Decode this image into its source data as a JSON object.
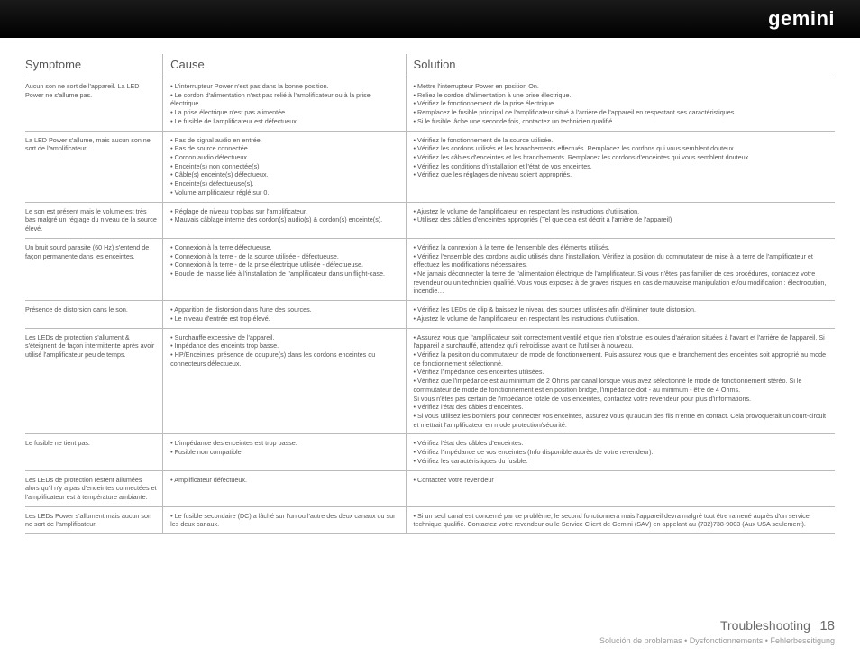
{
  "brand": "gemini",
  "headers": {
    "c1": "Symptome",
    "c2": "Cause",
    "c3": "Solution"
  },
  "footer": {
    "title": "Troubleshooting",
    "page": "18",
    "sub": "Solución de problemas • Dysfonctionnements  • Fehlerbeseitigung"
  },
  "rows": [
    {
      "symptom": "Aucun son ne sort de l'appareil. La LED Power ne s'allume pas.",
      "cause": "• L'interrupteur Power n'est pas dans la bonne position.\n• Le cordon d'alimentation n'est pas relié à l'amplificateur ou à la prise électrique.\n• La prise électrique n'est pas alimentée.\n• Le fusible de l'amplificateur est défectueux.",
      "solution": "• Mettre l'interrupteur Power en position On.\n• Reliez le cordon d'alimentation à une prise électrique.\n• Vérifiez le fonctionnement de la prise électrique.\n• Remplacez le fusible principal de l'amplificateur situé à l'arrière de l'appareil en respectant ses caractéristiques.\n• Si le fusible lâche une seconde fois, contactez un technicien qualifié."
    },
    {
      "symptom": "La LED Power s'allume, mais aucun son ne sort de l'amplificateur.",
      "cause": "• Pas de signal audio en entrée.\n• Pas de source connectée.\n• Cordon audio défectueux.\n• Enceinte(s) non connectée(s)\n• Câble(s) enceinte(s) défectueux.\n• Enceinte(s) défectueuse(s).\n• Volume amplificateur réglé sur 0.",
      "solution": "• Vérifiez le fonctionnement de la source utilisée.\n• Vérifiez les cordons utilisés et les branchements effectués. Remplacez les cordons qui vous semblent douteux.\n• Vérifiez les câbles d'enceintes et les branchements.  Remplacez les cordons d'enceintes qui vous semblent douteux.\n• Vérifiez les conditions d'installation et l'état de vos enceintes.\n• Vérifiez que les réglages de niveau soient appropriés."
    },
    {
      "symptom": "Le son est présent mais le volume est très bas malgré un réglage du niveau de la source élevé.",
      "cause": "• Réglage de niveau trop bas sur l'amplificateur.\n• Mauvais câblage interne des cordon(s) audio(s) & cordon(s) enceinte(s).",
      "solution": "• Ajustez le volume de l'amplificateur en respectant les instructions d'utilisation.\n• Utilisez des câbles d'enceintes appropriés (Tel que cela est décrit à l'arrière de l'appareil)"
    },
    {
      "symptom": "Un bruit sourd parasite (60 Hz) s'entend de façon permanente dans les enceintes.",
      "cause": "• Connexion à la terre défectueuse.\n• Connexion à la terre - de la source utilisée - défectueuse.\n• Connexion à la terre - de la prise électrique utilisée - défectueuse.\n• Boucle de masse liée à l'installation de l'amplificateur dans un flight-case.",
      "solution": "• Vérifiez la connexion à la terre de l'ensemble des éléments utilisés.\n• Vérifiez l'ensemble des cordons audio utilisés dans l'installation. Vérifiez la position du commutateur de mise à la terre de l'amplificateur et effectuez les modifications nécessaires.\n• Ne jamais déconnecter la terre de l'alimentation électrique de l'amplificateur. Si vous n'êtes pas familier de ces procédures, contactez votre revendeur ou un technicien qualifié. Vous vous exposez à de graves risques en cas de mauvaise manipulation et/ou modification : électrocution, incendie…"
    },
    {
      "symptom": "Présence de distorsion dans le son.",
      "cause": "• Apparition de distorsion dans l'une des sources.\n• Le niveau d'entrée est trop élevé.",
      "solution": "• Vérifiez les LEDs de clip & baissez le niveau des sources utilisées afin d'éliminer toute distorsion.\n• Ajustez le volume de l'amplificateur en respectant les instructions d'utilisation."
    },
    {
      "symptom": "Les LEDs de protection s'allument & s'éteignent de façon intermittente après avoir utilisé l'amplificateur peu de temps.",
      "cause": "• Surchauffe excessive de l'appareil.\n• Impédance des enceints trop basse.\n• HP/Enceintes: présence de coupure(s) dans les cordons enceintes ou connecteurs défectueux.",
      "solution": "• Assurez vous que l'amplificateur soit correctement ventilé et que rien n'obstrue les ouïes d'aération situées à l'avant et l'arrière de l'appareil. Si l'appareil a surchauffé, attendez qu'il refroidisse avant de l'utiliser à nouveau.\n• Vérifiez la position du commutateur de mode de fonctionnement. Puis assurez vous que le branchement des enceintes soit approprié au mode de fonctionnement sélectionné.\n• Vérifiez l'impédance des enceintes utilisées.\n• Vérifiez que l'impédance est au minimum de 2 Ohms par canal lorsque vous avez sélectionné le mode de fonctionnement stéréo. Si le commutateur de mode de fonctionnement est en position bridge, l'impédance doit - au minimum - être de 4 Ohms.\nSi vous n'êtes pas certain de l'impédance totale de vos enceintes, contactez votre revendeur pour plus d'informations.\n• Vérifiez l'état des câbles d'enceintes.\n• Si vous utilisez les borniers pour connecter vos enceintes, assurez vous qu'aucun des fils n'entre en contact. Cela provoquerait un court-circuit et mettrait l'amplificateur en mode protection/sécurité."
    },
    {
      "symptom": "Le fusible ne tient pas.",
      "cause": "• L'impédance des enceintes est trop basse.\n• Fusible non compatible.",
      "solution": "• Vérifiez l'état des câbles d'enceintes.\n• Vérifiez l'impédance de vos enceintes (Info disponible auprès de votre revendeur).\n• Vérifiez les caractéristiques du fusible."
    },
    {
      "symptom": "Les LEDs de protection restent allumées alors qu'il n'y a pas d'enceintes connectées et l'amplificateur est à température ambiante.",
      "cause": "• Amplificateur défectueux.",
      "solution": "• Contactez votre revendeur"
    },
    {
      "symptom": "Les LEDs Power s'allument mais aucun son ne sort de l'amplificateur.",
      "cause": "• Le fusible secondaire (DC) a lâché sur l'un ou l'autre des deux canaux ou sur les deux canaux.",
      "solution": "• Si un seul canal est concerné par ce problème, le second fonctionnera mais l'appareil devra malgré tout être ramené auprès d'un service technique qualifié. Contactez votre revendeur ou le Service Client de Gemini (SAV) en appelant au (732)738-9003 (Aux USA seulement)."
    }
  ]
}
